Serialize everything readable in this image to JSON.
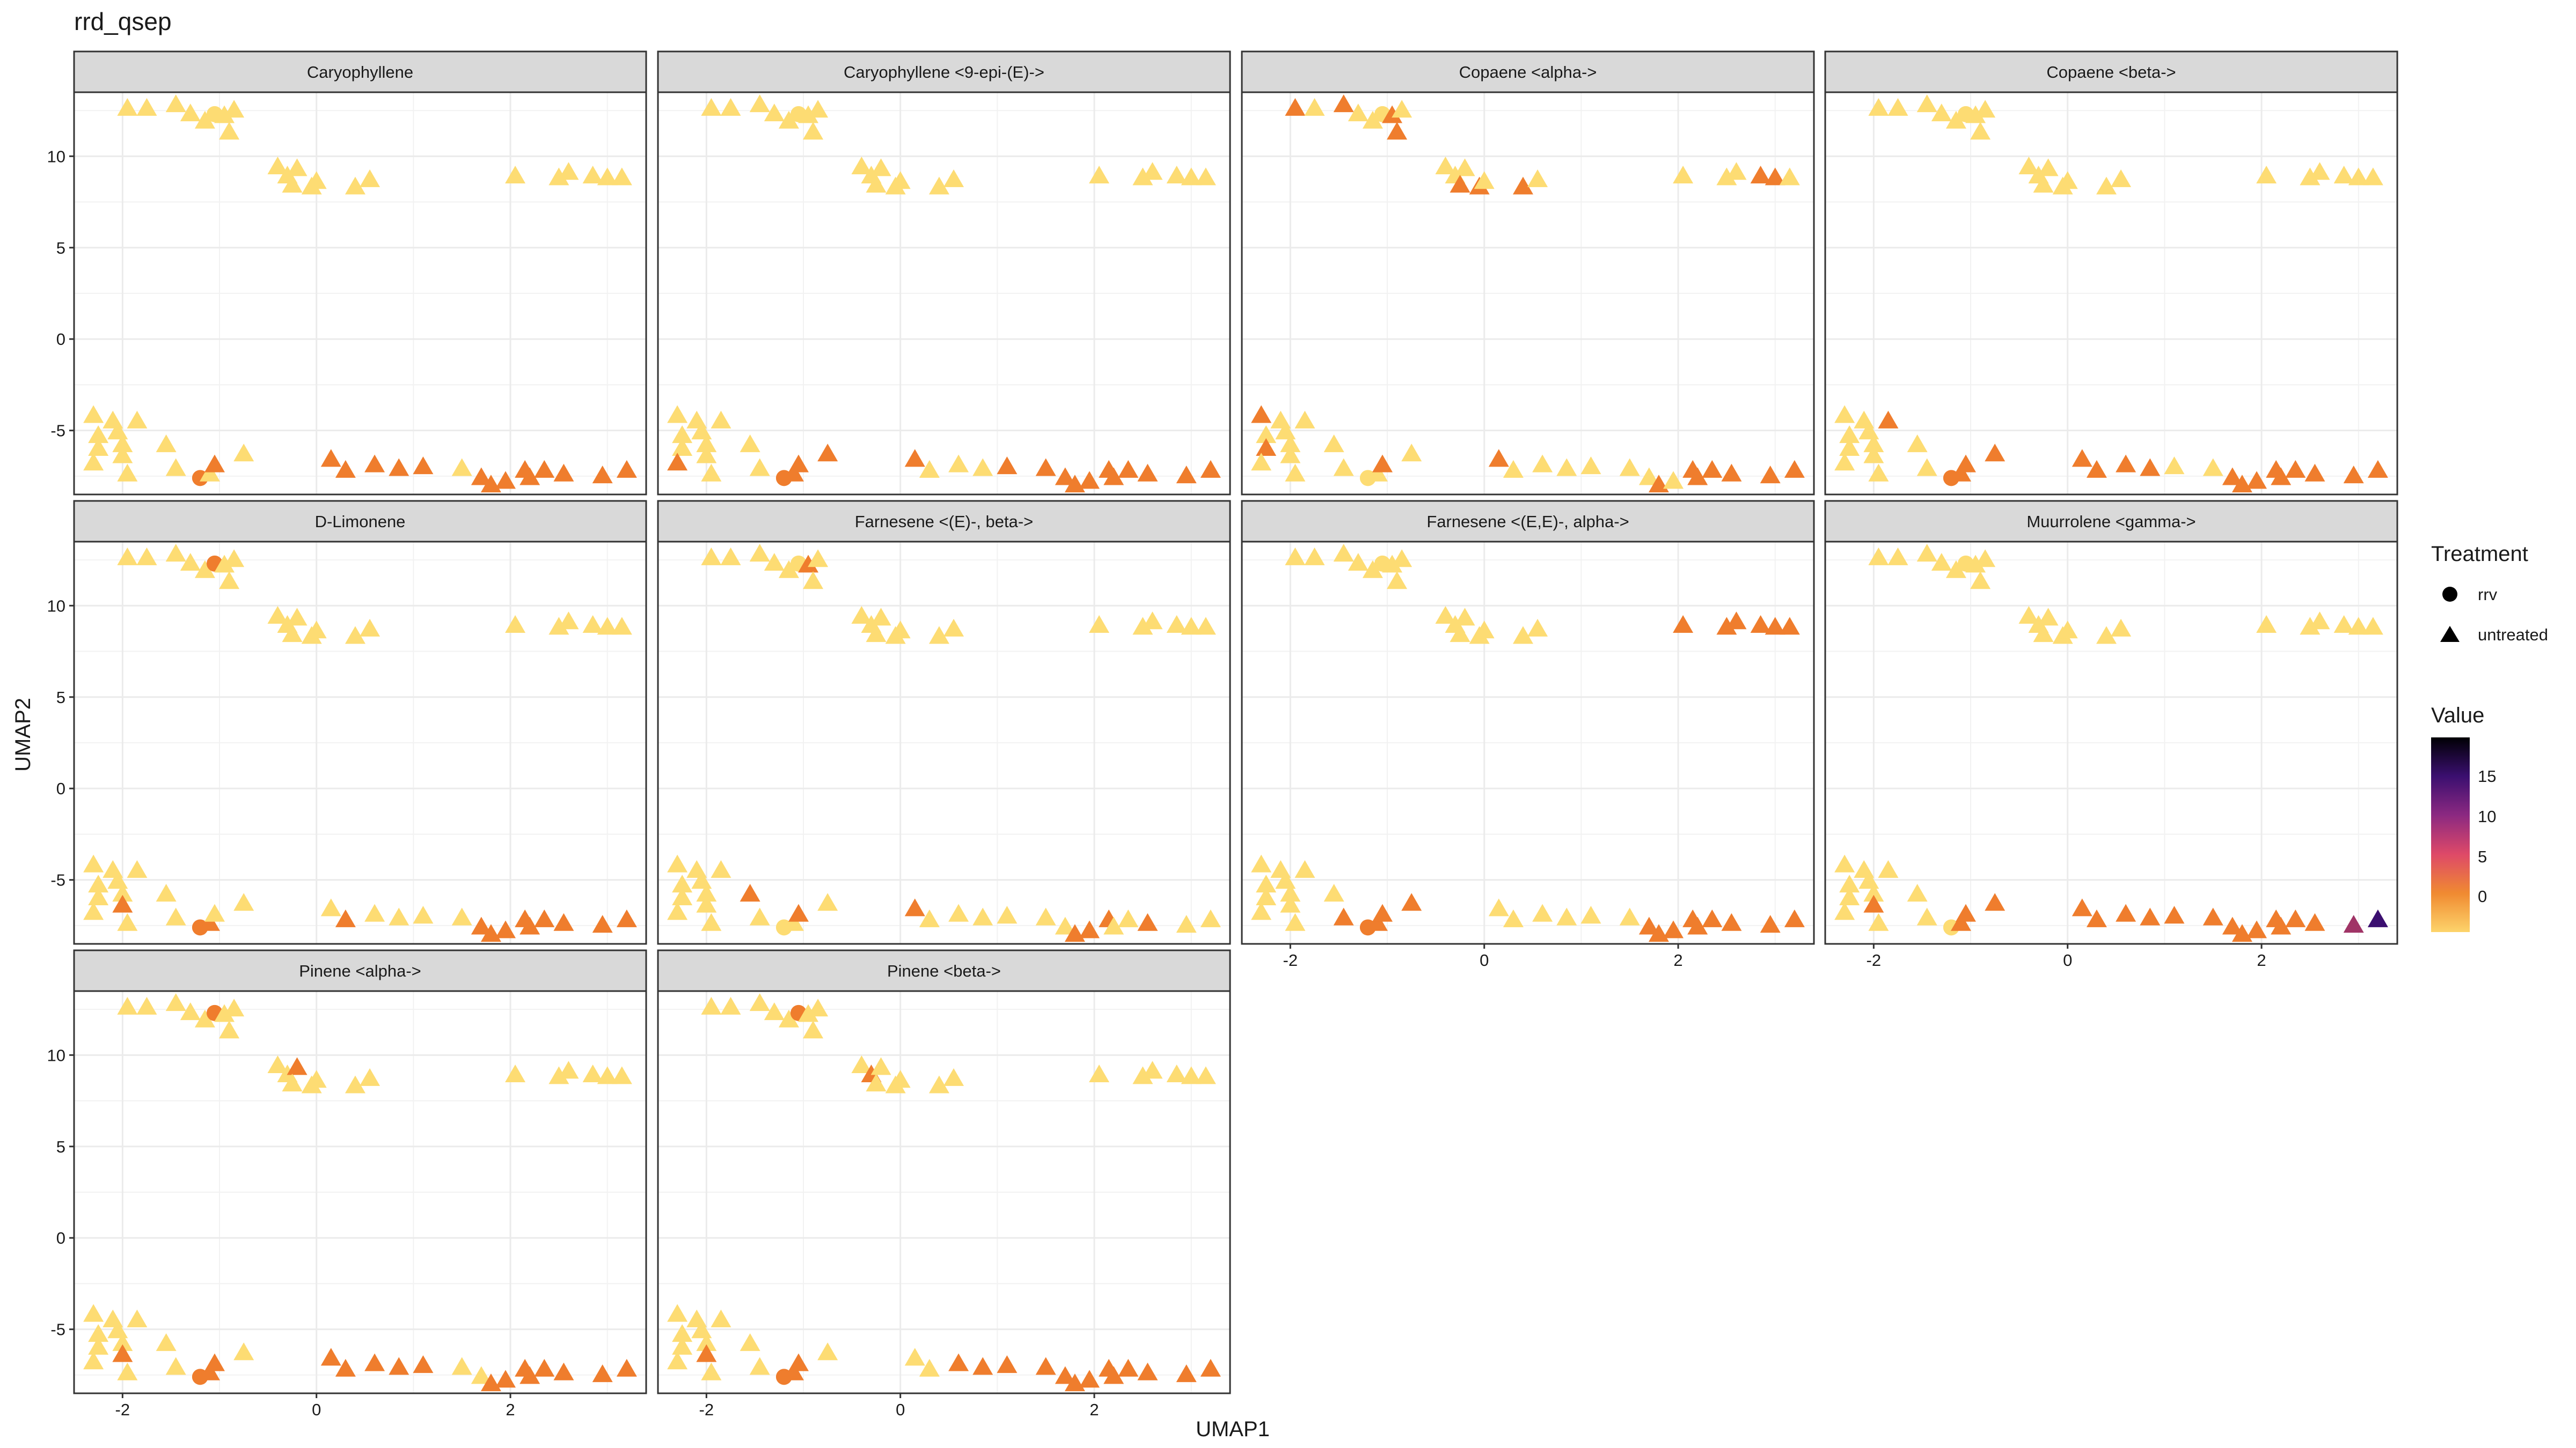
{
  "chart_data": {
    "type": "scatter",
    "title": "rrd_qsep",
    "xlabel": "UMAP1",
    "ylabel": "UMAP2",
    "xlim": [
      -2.5,
      3.4
    ],
    "ylim": [
      -8.5,
      13.5
    ],
    "x_ticks": [
      -2,
      0,
      2
    ],
    "y_ticks": [
      -5,
      0,
      5,
      10
    ],
    "grid": true,
    "legend_position": "right",
    "legend": {
      "treatment_title": "Treatment",
      "treatment_entries": [
        {
          "label": "rrv",
          "shape": "circle"
        },
        {
          "label": "untreated",
          "shape": "triangle"
        }
      ],
      "value_title": "Value",
      "value_ticks": [
        "15",
        "10",
        "5",
        "0"
      ],
      "value_colors": [
        "#000004",
        "#3b0f70",
        "#8c2981",
        "#de4968",
        "#f08a31",
        "#fdd46b"
      ]
    },
    "colors": {
      "zero": "#fddc73",
      "orange": "#ef7d2d",
      "dark_orange": "#e06d23",
      "magenta": "#a03466",
      "purple": "#3b0f70",
      "black": "#0b0418"
    },
    "points": [
      {
        "x": -1.95,
        "y": 12.6,
        "t": "u"
      },
      {
        "x": -1.75,
        "y": 12.6,
        "t": "u"
      },
      {
        "x": -1.45,
        "y": 12.8,
        "t": "u"
      },
      {
        "x": -1.3,
        "y": 12.3,
        "t": "u"
      },
      {
        "x": -1.15,
        "y": 11.9,
        "t": "u"
      },
      {
        "x": -1.05,
        "y": 12.3,
        "t": "r"
      },
      {
        "x": -0.95,
        "y": 12.2,
        "t": "u"
      },
      {
        "x": -0.9,
        "y": 11.3,
        "t": "u"
      },
      {
        "x": -0.85,
        "y": 12.5,
        "t": "u"
      },
      {
        "x": -0.4,
        "y": 9.4,
        "t": "u"
      },
      {
        "x": -0.3,
        "y": 8.9,
        "t": "u"
      },
      {
        "x": -0.2,
        "y": 9.3,
        "t": "u"
      },
      {
        "x": -0.25,
        "y": 8.4,
        "t": "u"
      },
      {
        "x": -0.05,
        "y": 8.3,
        "t": "u"
      },
      {
        "x": 0.0,
        "y": 8.6,
        "t": "u"
      },
      {
        "x": 0.4,
        "y": 8.3,
        "t": "u"
      },
      {
        "x": 0.55,
        "y": 8.7,
        "t": "u"
      },
      {
        "x": 2.05,
        "y": 8.9,
        "t": "u"
      },
      {
        "x": 2.5,
        "y": 8.8,
        "t": "u"
      },
      {
        "x": 2.6,
        "y": 9.1,
        "t": "u"
      },
      {
        "x": 2.85,
        "y": 8.9,
        "t": "u"
      },
      {
        "x": 3.0,
        "y": 8.8,
        "t": "u"
      },
      {
        "x": 3.15,
        "y": 8.8,
        "t": "u"
      },
      {
        "x": -2.3,
        "y": -4.2,
        "t": "u"
      },
      {
        "x": -2.25,
        "y": -5.3,
        "t": "u"
      },
      {
        "x": -2.25,
        "y": -6.0,
        "t": "u"
      },
      {
        "x": -2.3,
        "y": -6.8,
        "t": "u"
      },
      {
        "x": -2.1,
        "y": -4.5,
        "t": "u"
      },
      {
        "x": -2.05,
        "y": -5.1,
        "t": "u"
      },
      {
        "x": -2.0,
        "y": -5.8,
        "t": "u"
      },
      {
        "x": -2.0,
        "y": -6.4,
        "t": "u"
      },
      {
        "x": -1.95,
        "y": -7.4,
        "t": "u"
      },
      {
        "x": -1.85,
        "y": -4.5,
        "t": "u"
      },
      {
        "x": -1.55,
        "y": -5.8,
        "t": "u"
      },
      {
        "x": -1.45,
        "y": -7.1,
        "t": "u"
      },
      {
        "x": -1.2,
        "y": -7.6,
        "t": "r"
      },
      {
        "x": -1.1,
        "y": -7.4,
        "t": "u"
      },
      {
        "x": -1.05,
        "y": -6.9,
        "t": "u"
      },
      {
        "x": -0.75,
        "y": -6.3,
        "t": "u"
      },
      {
        "x": 0.15,
        "y": -6.6,
        "t": "u"
      },
      {
        "x": 0.3,
        "y": -7.2,
        "t": "u"
      },
      {
        "x": 0.6,
        "y": -6.9,
        "t": "u"
      },
      {
        "x": 0.85,
        "y": -7.1,
        "t": "u"
      },
      {
        "x": 1.1,
        "y": -7.0,
        "t": "u"
      },
      {
        "x": 1.5,
        "y": -7.1,
        "t": "u"
      },
      {
        "x": 1.7,
        "y": -7.6,
        "t": "u"
      },
      {
        "x": 1.8,
        "y": -8.0,
        "t": "u"
      },
      {
        "x": 1.95,
        "y": -7.8,
        "t": "u"
      },
      {
        "x": 2.15,
        "y": -7.2,
        "t": "u"
      },
      {
        "x": 2.2,
        "y": -7.6,
        "t": "u"
      },
      {
        "x": 2.35,
        "y": -7.2,
        "t": "u"
      },
      {
        "x": 2.55,
        "y": -7.4,
        "t": "u"
      },
      {
        "x": 2.95,
        "y": -7.5,
        "t": "u"
      },
      {
        "x": 3.2,
        "y": -7.2,
        "t": "u"
      }
    ],
    "panels": [
      {
        "title": "Caryophyllene",
        "values": [
          0,
          0,
          0,
          0,
          0,
          0,
          0,
          0,
          0,
          0,
          0,
          0,
          0,
          0,
          0,
          0,
          0,
          0,
          0,
          0,
          0,
          0,
          0,
          0,
          0,
          0,
          0,
          0,
          0,
          0,
          0,
          0,
          0,
          0,
          0,
          3,
          0,
          3,
          0,
          3,
          3,
          3,
          3,
          3,
          0,
          3,
          3,
          3,
          3,
          3,
          3,
          3,
          3,
          3
        ]
      },
      {
        "title": "Caryophyllene <9-epi-(E)->",
        "values": [
          0,
          0,
          0,
          0,
          0,
          0,
          0,
          0,
          0,
          0,
          0,
          0,
          0,
          0,
          0,
          0,
          0,
          0,
          0,
          0,
          0,
          0,
          0,
          0,
          0,
          0,
          3,
          0,
          0,
          0,
          0,
          0,
          0,
          0,
          0,
          3,
          3,
          3,
          3,
          3,
          0,
          0,
          0,
          3,
          3,
          3,
          3,
          3,
          3,
          3,
          3,
          3,
          3,
          3
        ]
      },
      {
        "title": "Copaene <alpha->",
        "values": [
          3,
          0,
          3,
          0,
          0,
          0,
          3,
          3,
          0,
          0,
          0,
          0,
          3,
          3,
          0,
          3,
          0,
          0,
          0,
          0,
          3,
          3,
          0,
          3,
          0,
          3,
          0,
          0,
          0,
          0,
          0,
          0,
          0,
          0,
          0,
          0,
          0,
          3,
          0,
          3,
          0,
          0,
          0,
          0,
          0,
          0,
          3,
          0,
          3,
          3,
          3,
          3,
          3,
          3
        ]
      },
      {
        "title": "Copaene <beta->",
        "values": [
          0,
          0,
          0,
          0,
          0,
          0,
          0,
          0,
          0,
          0,
          0,
          0,
          0,
          0,
          0,
          0,
          0,
          0,
          0,
          0,
          0,
          0,
          0,
          0,
          0,
          0,
          0,
          0,
          0,
          0,
          0,
          0,
          3,
          0,
          0,
          3,
          3,
          3,
          3,
          3,
          3,
          3,
          3,
          0,
          0,
          3,
          3,
          3,
          3,
          3,
          3,
          3,
          3,
          3
        ]
      },
      {
        "title": "D-Limonene",
        "values": [
          0,
          0,
          0,
          0,
          0,
          3,
          0,
          0,
          0,
          0,
          0,
          0,
          0,
          0,
          0,
          0,
          0,
          0,
          0,
          0,
          0,
          0,
          0,
          0,
          0,
          0,
          0,
          0,
          0,
          0,
          3,
          0,
          0,
          0,
          0,
          3,
          3,
          0,
          0,
          0,
          3,
          0,
          0,
          0,
          0,
          3,
          3,
          3,
          3,
          3,
          3,
          3,
          3,
          3
        ]
      },
      {
        "title": "Farnesene <(E)-, beta->",
        "values": [
          0,
          0,
          0,
          0,
          0,
          0,
          3,
          0,
          0,
          0,
          0,
          0,
          0,
          0,
          0,
          0,
          0,
          0,
          0,
          0,
          0,
          0,
          0,
          0,
          0,
          0,
          0,
          0,
          0,
          0,
          0,
          0,
          0,
          3,
          0,
          0,
          0,
          3,
          0,
          3,
          0,
          0,
          0,
          0,
          0,
          0,
          3,
          3,
          3,
          0,
          0,
          3,
          0,
          0
        ]
      },
      {
        "title": "Farnesene <(E,E)-, alpha->",
        "values": [
          0,
          0,
          0,
          0,
          0,
          0,
          0,
          0,
          0,
          0,
          0,
          0,
          0,
          0,
          0,
          0,
          0,
          3,
          3,
          3,
          3,
          3,
          3,
          0,
          0,
          0,
          0,
          0,
          0,
          0,
          0,
          0,
          0,
          0,
          3,
          3,
          3,
          3,
          3,
          0,
          0,
          0,
          0,
          0,
          0,
          3,
          3,
          3,
          3,
          3,
          3,
          3,
          5,
          3
        ]
      },
      {
        "title": "Muurrolene <gamma->",
        "values": [
          0,
          0,
          0,
          0,
          0,
          0,
          0,
          0,
          0,
          0,
          0,
          0,
          0,
          0,
          0,
          0,
          0,
          0,
          0,
          0,
          0,
          0,
          0,
          0,
          0,
          0,
          0,
          0,
          0,
          0,
          3,
          0,
          0,
          0,
          0,
          0,
          3,
          3,
          3,
          3,
          3,
          3,
          3,
          3,
          3,
          3,
          3,
          3,
          3,
          3,
          3,
          3,
          7,
          9
        ]
      },
      {
        "title": "Pinene <alpha->",
        "values": [
          0,
          0,
          0,
          0,
          0,
          3,
          0,
          0,
          0,
          0,
          0,
          3,
          0,
          0,
          0,
          0,
          0,
          0,
          0,
          0,
          0,
          0,
          0,
          0,
          0,
          0,
          0,
          0,
          0,
          0,
          3,
          0,
          0,
          0,
          0,
          3,
          3,
          3,
          0,
          3,
          3,
          3,
          3,
          3,
          0,
          0,
          3,
          3,
          3,
          3,
          3,
          3,
          3,
          3
        ]
      },
      {
        "title": "Pinene <beta->",
        "values": [
          0,
          0,
          0,
          0,
          0,
          3,
          0,
          0,
          0,
          0,
          3,
          0,
          0,
          0,
          0,
          0,
          0,
          0,
          0,
          0,
          0,
          0,
          0,
          0,
          0,
          0,
          0,
          0,
          0,
          0,
          3,
          0,
          0,
          0,
          0,
          3,
          3,
          3,
          0,
          0,
          0,
          3,
          3,
          3,
          3,
          3,
          3,
          3,
          3,
          3,
          3,
          3,
          3,
          3
        ]
      }
    ]
  }
}
